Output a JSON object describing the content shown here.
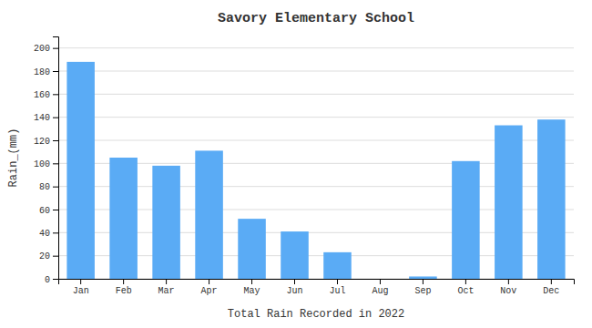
{
  "chart_data": {
    "type": "bar",
    "title": "Savory Elementary School",
    "xlabel": "Total Rain Recorded in 2022",
    "ylabel": "Rain_(mm)",
    "categories": [
      "Jan",
      "Feb",
      "Mar",
      "Apr",
      "May",
      "Jun",
      "Jul",
      "Aug",
      "Sep",
      "Oct",
      "Nov",
      "Dec"
    ],
    "values": [
      188,
      105,
      98,
      111,
      52,
      41,
      23,
      0,
      2,
      102,
      133,
      138
    ],
    "color": "#5aabf5",
    "ylim": [
      0,
      210
    ],
    "yticks": [
      0,
      20,
      40,
      60,
      80,
      100,
      120,
      140,
      160,
      180,
      200
    ],
    "grid": true
  }
}
